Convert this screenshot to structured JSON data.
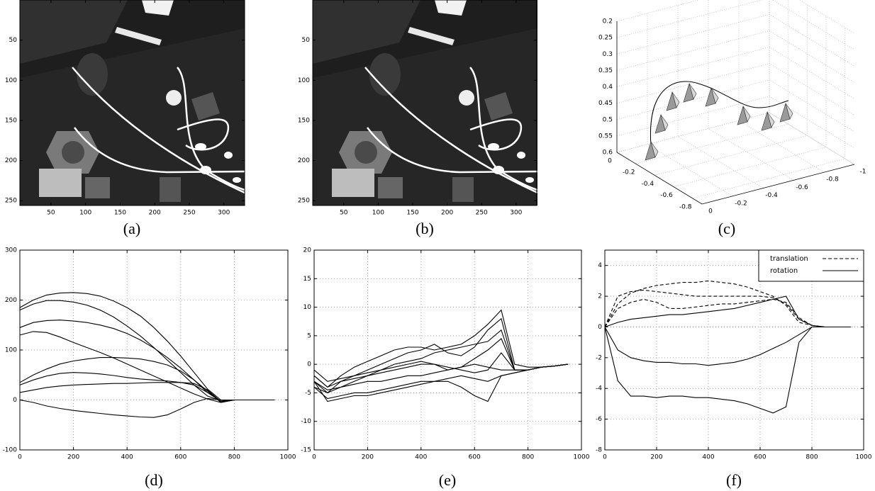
{
  "chart_data": [
    {
      "type": "image",
      "caption": "(a)",
      "xlim": [
        5,
        330
      ],
      "xticks": [
        50,
        100,
        150,
        200,
        250,
        300
      ],
      "ylim": [
        256,
        0
      ],
      "yticks": [
        50,
        100,
        150,
        200,
        250
      ]
    },
    {
      "type": "image",
      "caption": "(b)",
      "xlim": [
        5,
        330
      ],
      "xticks": [
        50,
        100,
        150,
        200,
        250,
        300
      ],
      "ylim": [
        256,
        0
      ],
      "yticks": [
        50,
        100,
        150,
        200,
        250
      ]
    },
    {
      "type": "3d",
      "caption": "(c)",
      "xlim": [
        0,
        -0.9
      ],
      "xticks": [
        0,
        -0.2,
        -0.4,
        -0.6,
        -0.8
      ],
      "ylim": [
        0,
        -1
      ],
      "yticks": [
        0,
        -0.2,
        -0.4,
        -0.6,
        -0.8,
        -1
      ],
      "zlim": [
        0.6,
        0.2
      ],
      "zticks": [
        0.2,
        0.25,
        0.3,
        0.35,
        0.4,
        0.45,
        0.5,
        0.55,
        0.6
      ],
      "grid": true
    },
    {
      "type": "line",
      "caption": "(d)",
      "color": "#000000",
      "grid": true,
      "x": [
        0,
        50,
        100,
        150,
        200,
        250,
        300,
        350,
        400,
        450,
        500,
        550,
        600,
        650,
        700,
        750,
        800,
        850,
        900,
        950
      ],
      "xlim": [
        0,
        1000
      ],
      "xticks": [
        0,
        200,
        400,
        600,
        800,
        1000
      ],
      "ylim": [
        -100,
        300
      ],
      "yticks": [
        -100,
        0,
        100,
        200,
        300
      ],
      "series": [
        {
          "values": [
            185,
            200,
            210,
            214,
            215,
            213,
            208,
            198,
            185,
            168,
            145,
            118,
            88,
            55,
            22,
            0,
            0,
            0,
            0,
            0
          ]
        },
        {
          "values": [
            180,
            192,
            199,
            199,
            196,
            190,
            180,
            166,
            148,
            128,
            105,
            80,
            55,
            30,
            8,
            -2,
            0,
            0,
            0,
            0
          ]
        },
        {
          "values": [
            145,
            155,
            159,
            160,
            158,
            155,
            150,
            143,
            133,
            120,
            104,
            85,
            64,
            40,
            15,
            -3,
            0,
            0,
            0,
            0
          ]
        },
        {
          "values": [
            130,
            137,
            135,
            126,
            115,
            105,
            95,
            84,
            72,
            60,
            48,
            36,
            24,
            12,
            2,
            -5,
            0,
            0,
            0,
            0
          ]
        },
        {
          "values": [
            35,
            50,
            62,
            72,
            78,
            82,
            85,
            85,
            84,
            82,
            77,
            70,
            58,
            40,
            18,
            -5,
            0,
            0,
            0,
            0
          ]
        },
        {
          "values": [
            30,
            40,
            48,
            53,
            55,
            54,
            52,
            49,
            45,
            42,
            40,
            38,
            35,
            30,
            15,
            -3,
            0,
            0,
            0,
            0
          ]
        },
        {
          "values": [
            15,
            20,
            25,
            28,
            30,
            31,
            32,
            33,
            33,
            34,
            35,
            35,
            35,
            33,
            20,
            -3,
            0,
            0,
            0,
            0
          ]
        },
        {
          "values": [
            0,
            -5,
            -12,
            -17,
            -21,
            -24,
            -27,
            -30,
            -32,
            -34,
            -35,
            -30,
            -18,
            -5,
            3,
            0,
            0,
            0,
            0,
            0
          ]
        }
      ]
    },
    {
      "type": "line",
      "caption": "(e)",
      "color": "#000000",
      "grid": true,
      "x": [
        0,
        50,
        100,
        150,
        200,
        250,
        300,
        350,
        400,
        450,
        500,
        550,
        600,
        650,
        700,
        750,
        800,
        850,
        900,
        950
      ],
      "xlim": [
        0,
        1000
      ],
      "xticks": [
        0,
        200,
        400,
        600,
        800,
        1000
      ],
      "ylim": [
        -15,
        20
      ],
      "yticks": [
        -15,
        -10,
        -5,
        0,
        5,
        10,
        15,
        20
      ],
      "series": [
        {
          "values": [
            -2,
            -4,
            -2,
            -0.5,
            0.5,
            1.5,
            2.5,
            3,
            3,
            2.5,
            3,
            3.5,
            5,
            7,
            9.5,
            0,
            -0.5,
            -0.5,
            -0.3,
            0
          ]
        },
        {
          "values": [
            -3,
            -5,
            -3,
            -2,
            -1,
            0,
            1,
            2,
            2.5,
            3.5,
            2,
            1.5,
            3,
            6,
            8,
            -1,
            -1,
            -0.5,
            -0.3,
            0
          ]
        },
        {
          "values": [
            -4,
            -5,
            -4,
            -3,
            -2,
            -1,
            0,
            0.5,
            1,
            2,
            2.5,
            3,
            3.5,
            4,
            6,
            -1,
            -1,
            -0.5,
            -0.3,
            0
          ]
        },
        {
          "values": [
            -1,
            -3,
            -2.5,
            -2,
            -1.5,
            -1,
            -0.5,
            0,
            0.5,
            0,
            -1,
            -0.5,
            1,
            2.5,
            4.5,
            -1,
            -1,
            -0.5,
            -0.3,
            0
          ]
        },
        {
          "values": [
            -2,
            -4,
            -3,
            -2.5,
            -2,
            -1.5,
            -1,
            -0.5,
            0,
            0,
            -0.5,
            -1,
            -1.5,
            -1,
            2,
            -1,
            -1,
            -0.5,
            -0.3,
            0
          ]
        },
        {
          "values": [
            -3,
            -4.5,
            -4,
            -3.5,
            -3,
            -3,
            -2.5,
            -2,
            -2,
            -1.5,
            -1,
            -0.5,
            0,
            -0.5,
            -1,
            -1,
            -1,
            -0.5,
            -0.3,
            0
          ]
        },
        {
          "values": [
            -4,
            -6,
            -5.5,
            -5,
            -5,
            -4.5,
            -4,
            -3.5,
            -3,
            -3,
            -2.5,
            -2,
            -2.5,
            -3,
            -2,
            -1.5,
            -1,
            -0.5,
            -0.3,
            0
          ]
        },
        {
          "values": [
            -3,
            -6.5,
            -6,
            -5.5,
            -5.5,
            -5,
            -4.5,
            -4,
            -3.5,
            -3,
            -3,
            -4,
            -5.5,
            -6.5,
            -2,
            -1.5,
            -1,
            -0.5,
            -0.3,
            0
          ]
        }
      ]
    },
    {
      "type": "line",
      "caption": "(f)",
      "color": "#000000",
      "grid": true,
      "legend": "upper right",
      "x": [
        0,
        50,
        100,
        150,
        200,
        250,
        300,
        350,
        400,
        450,
        500,
        550,
        600,
        650,
        700,
        750,
        800,
        850,
        900,
        950
      ],
      "xlim": [
        0,
        1000
      ],
      "xticks": [
        0,
        200,
        400,
        600,
        800,
        1000
      ],
      "ylim": [
        -8,
        5
      ],
      "yticks": [
        -8,
        -6,
        -4,
        -2,
        0,
        2,
        4
      ],
      "series": [
        {
          "name": "translation",
          "dash": "dashed",
          "lines": [
            [
              0,
              2,
              2.3,
              2.4,
              2.3,
              2.2,
              2.1,
              2,
              2,
              2,
              2,
              2,
              2,
              1.9,
              1.5,
              0.5,
              0.1,
              0,
              0,
              0
            ],
            [
              0,
              1.5,
              2.2,
              2.5,
              2.7,
              2.8,
              2.9,
              2.9,
              3,
              2.9,
              2.8,
              2.6,
              2.3,
              2,
              1.4,
              0.3,
              0.1,
              0,
              0,
              0
            ],
            [
              0,
              1.2,
              1.6,
              1.8,
              1.6,
              1.2,
              1.2,
              1.3,
              1.4,
              1.5,
              1.5,
              1.6,
              1.7,
              1.8,
              1.6,
              0.6,
              0.1,
              0,
              0,
              0
            ]
          ]
        },
        {
          "name": "rotation",
          "dash": "solid",
          "lines": [
            [
              0,
              0.3,
              0.5,
              0.6,
              0.7,
              0.8,
              0.8,
              0.9,
              1,
              1.1,
              1.2,
              1.4,
              1.6,
              1.8,
              2,
              0.5,
              0.1,
              0,
              0,
              0
            ],
            [
              0,
              -1.5,
              -2,
              -2.2,
              -2.3,
              -2.3,
              -2.4,
              -2.4,
              -2.5,
              -2.4,
              -2.3,
              -2.1,
              -1.8,
              -1.4,
              -1,
              -0.5,
              0,
              0,
              0,
              0
            ],
            [
              0,
              -3.5,
              -4.5,
              -4.5,
              -4.6,
              -4.5,
              -4.5,
              -4.6,
              -4.6,
              -4.7,
              -4.8,
              -5,
              -5.3,
              -5.6,
              -5.2,
              -1,
              0,
              0,
              0,
              0
            ]
          ]
        }
      ]
    }
  ]
}
